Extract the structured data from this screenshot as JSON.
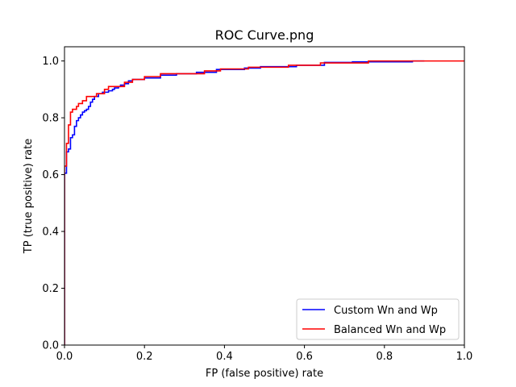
{
  "chart_data": {
    "type": "line",
    "title": "ROC Curve.png",
    "xlabel": "FP (false positive) rate",
    "ylabel": "TP (true positive) rate",
    "xlim": [
      0.0,
      1.0
    ],
    "ylim": [
      0.0,
      1.05
    ],
    "x_ticks": [
      "0.0",
      "0.2",
      "0.4",
      "0.6",
      "0.8",
      "1.0"
    ],
    "y_ticks": [
      "0.0",
      "0.2",
      "0.4",
      "0.6",
      "0.8",
      "1.0"
    ],
    "grid": false,
    "legend_position": "bottom-right",
    "series": [
      {
        "name": "Custom Wn and Wp",
        "color": "#0000ff",
        "step": true,
        "x": [
          0.0,
          0.0,
          0.005,
          0.005,
          0.01,
          0.01,
          0.015,
          0.015,
          0.02,
          0.02,
          0.025,
          0.025,
          0.03,
          0.03,
          0.035,
          0.035,
          0.04,
          0.04,
          0.045,
          0.045,
          0.05,
          0.05,
          0.055,
          0.055,
          0.06,
          0.06,
          0.065,
          0.065,
          0.07,
          0.07,
          0.075,
          0.075,
          0.085,
          0.085,
          0.095,
          0.095,
          0.11,
          0.11,
          0.12,
          0.12,
          0.125,
          0.125,
          0.135,
          0.135,
          0.14,
          0.14,
          0.15,
          0.15,
          0.16,
          0.16,
          0.17,
          0.17,
          0.2,
          0.2,
          0.24,
          0.24,
          0.28,
          0.28,
          0.33,
          0.33,
          0.38,
          0.38,
          0.45,
          0.45,
          0.49,
          0.49,
          0.58,
          0.58,
          0.65,
          0.65,
          0.72,
          0.72,
          0.87,
          0.87,
          0.9
        ],
        "y": [
          0.0,
          0.605,
          0.605,
          0.68,
          0.68,
          0.69,
          0.69,
          0.73,
          0.73,
          0.74,
          0.74,
          0.77,
          0.77,
          0.79,
          0.79,
          0.8,
          0.8,
          0.81,
          0.81,
          0.82,
          0.82,
          0.825,
          0.825,
          0.83,
          0.83,
          0.84,
          0.84,
          0.855,
          0.855,
          0.865,
          0.865,
          0.875,
          0.875,
          0.885,
          0.885,
          0.89,
          0.89,
          0.895,
          0.895,
          0.9,
          0.9,
          0.905,
          0.905,
          0.91,
          0.91,
          0.915,
          0.915,
          0.92,
          0.92,
          0.93,
          0.93,
          0.935,
          0.935,
          0.94,
          0.94,
          0.95,
          0.95,
          0.955,
          0.955,
          0.96,
          0.96,
          0.97,
          0.97,
          0.975,
          0.975,
          0.98,
          0.98,
          0.985,
          0.985,
          0.995,
          0.995,
          0.997,
          0.997,
          1.0,
          1.0
        ]
      },
      {
        "name": "Balanced Wn and Wp",
        "color": "#ff0000",
        "step": true,
        "x": [
          0.0,
          0.0,
          0.005,
          0.005,
          0.01,
          0.01,
          0.015,
          0.015,
          0.02,
          0.02,
          0.03,
          0.03,
          0.035,
          0.035,
          0.045,
          0.045,
          0.055,
          0.055,
          0.08,
          0.08,
          0.1,
          0.1,
          0.11,
          0.11,
          0.15,
          0.15,
          0.17,
          0.17,
          0.2,
          0.2,
          0.24,
          0.24,
          0.35,
          0.35,
          0.39,
          0.39,
          0.46,
          0.46,
          0.56,
          0.56,
          0.64,
          0.64,
          0.76,
          0.76,
          1.0
        ],
        "y": [
          0.0,
          0.63,
          0.63,
          0.71,
          0.71,
          0.775,
          0.775,
          0.82,
          0.82,
          0.83,
          0.83,
          0.84,
          0.84,
          0.85,
          0.85,
          0.86,
          0.86,
          0.875,
          0.875,
          0.885,
          0.885,
          0.9,
          0.9,
          0.91,
          0.91,
          0.925,
          0.925,
          0.935,
          0.935,
          0.945,
          0.945,
          0.955,
          0.955,
          0.965,
          0.965,
          0.972,
          0.972,
          0.978,
          0.978,
          0.985,
          0.985,
          0.993,
          0.993,
          1.0,
          1.0
        ]
      }
    ]
  }
}
